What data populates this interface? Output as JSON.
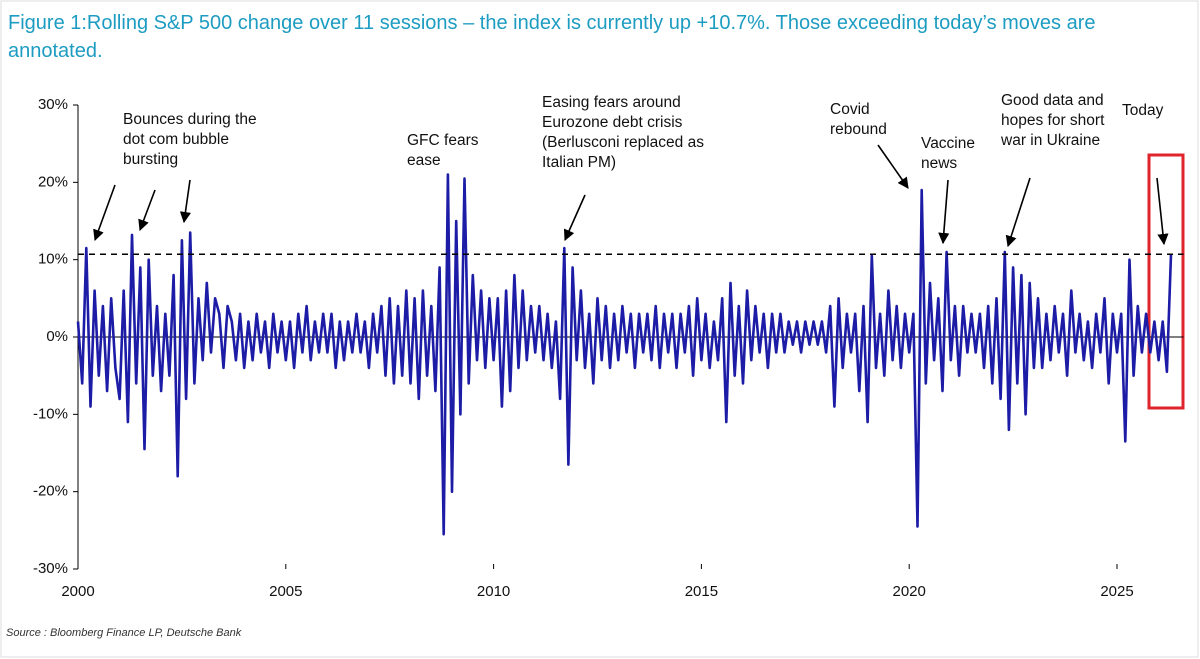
{
  "chart_data": {
    "type": "line",
    "title": "Figure 1:Rolling S&P 500 change over 11 sessions – the index is currently up +10.7%. Those exceeding today’s moves are annotated.",
    "source": "Source : Bloomberg Finance LP, Deutsche Bank",
    "color": "#1c1ca6",
    "reference_line": 10.7,
    "xlim": [
      2000,
      2026.6
    ],
    "xticks": [
      2000,
      2005,
      2010,
      2015,
      2020,
      2025
    ],
    "ylim": [
      -30,
      30
    ],
    "yticks": [
      {
        "value": 30,
        "label": "30%"
      },
      {
        "value": 20,
        "label": "20%"
      },
      {
        "value": 10,
        "label": "10%"
      },
      {
        "value": 0,
        "label": "0%"
      },
      {
        "value": -10,
        "label": "-10%"
      },
      {
        "value": -20,
        "label": "-20%"
      },
      {
        "value": -30,
        "label": "-30%"
      }
    ],
    "annotations": [
      [
        "Bounces during the",
        "dot com bubble",
        "bursting"
      ],
      [
        "GFC fears",
        "ease"
      ],
      [
        "Easing fears around",
        "Eurozone debt crisis",
        "(Berlusconi replaced as",
        "Italian PM)"
      ],
      [
        "Covid",
        "rebound"
      ],
      [
        "Vaccine",
        "news"
      ],
      [
        "Good data and",
        "hopes for short",
        "war in Ukraine"
      ],
      [
        "Today"
      ]
    ],
    "x": [
      2000,
      2000.1,
      2000.2,
      2000.3,
      2000.4,
      2000.5,
      2000.6,
      2000.7,
      2000.8,
      2000.9,
      2001,
      2001.1,
      2001.2,
      2001.3,
      2001.4,
      2001.5,
      2001.6,
      2001.7,
      2001.8,
      2001.9,
      2002,
      2002.1,
      2002.2,
      2002.3,
      2002.4,
      2002.5,
      2002.6,
      2002.7,
      2002.8,
      2002.9,
      2003,
      2003.1,
      2003.2,
      2003.3,
      2003.4,
      2003.5,
      2003.6,
      2003.7,
      2003.8,
      2003.9,
      2004,
      2004.1,
      2004.2,
      2004.3,
      2004.4,
      2004.5,
      2004.6,
      2004.7,
      2004.8,
      2004.9,
      2005,
      2005.1,
      2005.2,
      2005.3,
      2005.4,
      2005.5,
      2005.6,
      2005.7,
      2005.8,
      2005.9,
      2006,
      2006.1,
      2006.2,
      2006.3,
      2006.4,
      2006.5,
      2006.6,
      2006.7,
      2006.8,
      2006.9,
      2007,
      2007.1,
      2007.2,
      2007.3,
      2007.4,
      2007.5,
      2007.6,
      2007.7,
      2007.8,
      2007.9,
      2008,
      2008.1,
      2008.2,
      2008.3,
      2008.4,
      2008.5,
      2008.6,
      2008.7,
      2008.8,
      2008.9,
      2009,
      2009.1,
      2009.2,
      2009.3,
      2009.4,
      2009.5,
      2009.6,
      2009.7,
      2009.8,
      2009.9,
      2010,
      2010.1,
      2010.2,
      2010.3,
      2010.4,
      2010.5,
      2010.6,
      2010.7,
      2010.8,
      2010.9,
      2011,
      2011.1,
      2011.2,
      2011.3,
      2011.4,
      2011.5,
      2011.6,
      2011.7,
      2011.8,
      2011.9,
      2012,
      2012.1,
      2012.2,
      2012.3,
      2012.4,
      2012.5,
      2012.6,
      2012.7,
      2012.8,
      2012.9,
      2013,
      2013.1,
      2013.2,
      2013.3,
      2013.4,
      2013.5,
      2013.6,
      2013.7,
      2013.8,
      2013.9,
      2014,
      2014.1,
      2014.2,
      2014.3,
      2014.4,
      2014.5,
      2014.6,
      2014.7,
      2014.8,
      2014.9,
      2015,
      2015.1,
      2015.2,
      2015.3,
      2015.4,
      2015.5,
      2015.6,
      2015.7,
      2015.8,
      2015.9,
      2016,
      2016.1,
      2016.2,
      2016.3,
      2016.4,
      2016.5,
      2016.6,
      2016.7,
      2016.8,
      2016.9,
      2017,
      2017.1,
      2017.2,
      2017.3,
      2017.4,
      2017.5,
      2017.6,
      2017.7,
      2017.8,
      2017.9,
      2018,
      2018.1,
      2018.2,
      2018.3,
      2018.4,
      2018.5,
      2018.6,
      2018.7,
      2018.8,
      2018.9,
      2019,
      2019.1,
      2019.2,
      2019.3,
      2019.4,
      2019.5,
      2019.6,
      2019.7,
      2019.8,
      2019.9,
      2020,
      2020.1,
      2020.2,
      2020.3,
      2020.4,
      2020.5,
      2020.6,
      2020.7,
      2020.8,
      2020.9,
      2021,
      2021.1,
      2021.2,
      2021.3,
      2021.4,
      2021.5,
      2021.6,
      2021.7,
      2021.8,
      2021.9,
      2022,
      2022.1,
      2022.2,
      2022.3,
      2022.4,
      2022.5,
      2022.6,
      2022.7,
      2022.8,
      2022.9,
      2023,
      2023.1,
      2023.2,
      2023.3,
      2023.4,
      2023.5,
      2023.6,
      2023.7,
      2023.8,
      2023.9,
      2024,
      2024.1,
      2024.2,
      2024.3,
      2024.4,
      2024.5,
      2024.6,
      2024.7,
      2024.8,
      2024.9,
      2025,
      2025.1,
      2025.2,
      2025.3,
      2025.4,
      2025.5,
      2025.6,
      2025.7,
      2025.8,
      2025.9,
      2026,
      2026.1,
      2026.2,
      2026.3
    ],
    "values": [
      2,
      -6,
      11.5,
      -9,
      6,
      -5,
      4,
      -7,
      5,
      -4,
      -8,
      6,
      -11,
      13.2,
      -6,
      9,
      -14.5,
      10,
      -5,
      4,
      -7,
      3,
      -5,
      8,
      -18,
      12.5,
      -8,
      13.5,
      -6,
      5,
      -3,
      7,
      -2,
      5,
      3,
      -4,
      4,
      2,
      -3,
      3,
      -4,
      2,
      -3,
      3,
      -2,
      2,
      -4,
      3,
      -2,
      2,
      -3,
      2,
      -4,
      3,
      -2,
      4,
      -3,
      2,
      -2,
      3,
      -2,
      3,
      -4,
      2,
      -3,
      2,
      -2,
      3,
      -2,
      2,
      -4,
      3,
      -2,
      4,
      -5,
      5,
      -6,
      4,
      -5,
      6,
      -6,
      5,
      -8,
      6,
      -5,
      4,
      -7,
      9,
      -25.5,
      21,
      -20,
      15,
      -10,
      20.5,
      -6,
      8,
      -3,
      6,
      -4,
      5,
      -3,
      5,
      -9,
      6,
      -7,
      8,
      -4,
      6,
      -3,
      4,
      -2,
      4,
      -3,
      3,
      -4,
      2,
      -8,
      11.5,
      -16.5,
      9,
      -3,
      6,
      -4,
      3,
      -6,
      5,
      -3,
      4,
      -4,
      3,
      -3,
      4,
      -2,
      3,
      -4,
      3,
      -2,
      3,
      -3,
      4,
      -4,
      3,
      -2,
      3,
      -4,
      3,
      -2,
      4,
      -5,
      5,
      -3,
      3,
      -4,
      2,
      -3,
      5,
      -11,
      7,
      -5,
      4,
      -6,
      6,
      -3,
      4,
      -2,
      3,
      -4,
      3,
      -2,
      3,
      -2,
      2,
      -1,
      2,
      -2,
      2,
      -1,
      2,
      -1,
      2,
      -2,
      4,
      -9,
      5,
      -4,
      3,
      -2,
      3,
      -7,
      4,
      -11,
      10.5,
      -4,
      3,
      -5,
      6,
      -3,
      4,
      -4,
      3,
      -2,
      3,
      -24.5,
      19,
      -6,
      7,
      -3,
      5,
      -7,
      11,
      -3,
      4,
      -5,
      4,
      -2,
      3,
      -2,
      3,
      -4,
      4,
      -6,
      5,
      -8,
      11,
      -12,
      9,
      -6,
      8,
      -10,
      7,
      -4,
      5,
      -4,
      3,
      -3,
      4,
      -2,
      3,
      -5,
      6,
      -2,
      3,
      -3,
      2,
      -4,
      3,
      -2,
      5,
      -6,
      3,
      -2,
      3,
      -13.5,
      10,
      -5,
      4,
      -2,
      3,
      -2,
      2,
      -3,
      2,
      -4.5,
      10.7
    ]
  }
}
